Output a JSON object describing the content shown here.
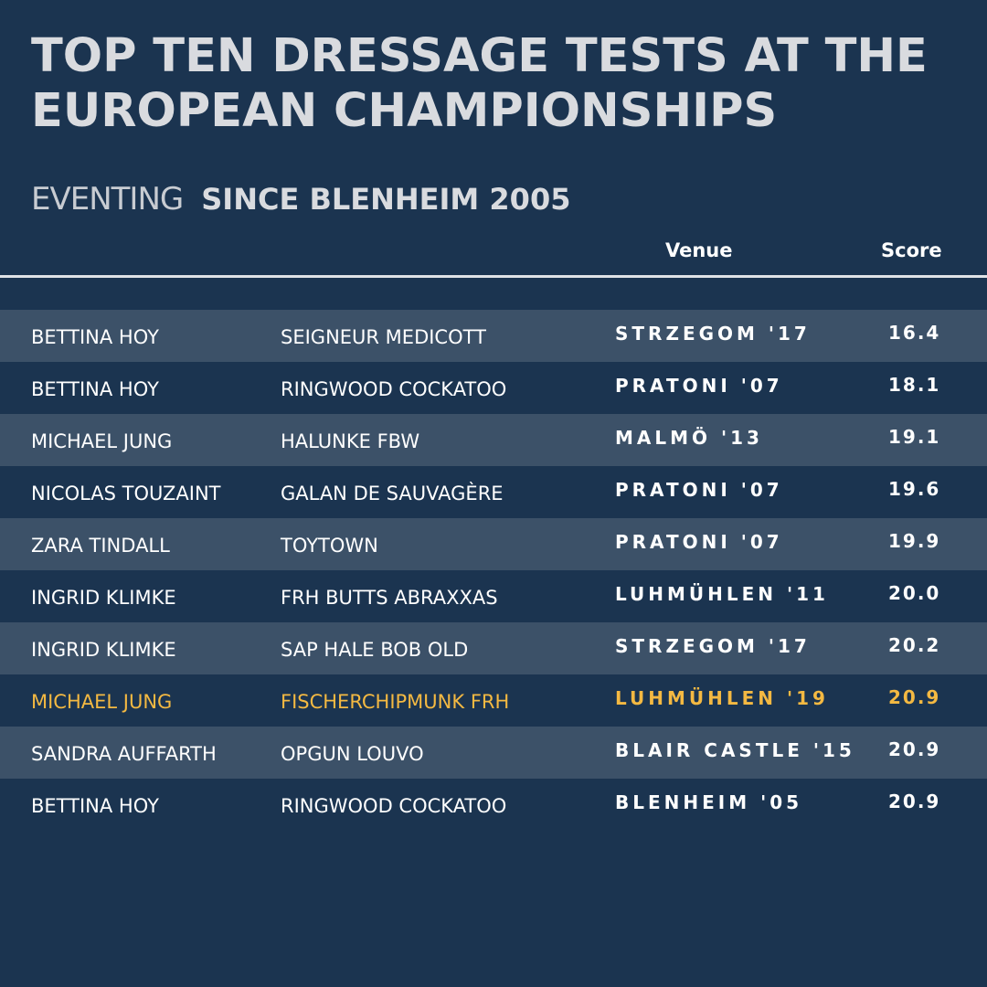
{
  "title_line1": "TOP TEN DRESSAGE TESTS AT THE",
  "title_line2": "EUROPEAN CHAMPIONSHIPS",
  "subtitle_light": "EVENTING",
  "subtitle_bold": "SINCE BLENHEIM 2005",
  "headers": {
    "venue": "Venue",
    "score": "Score"
  },
  "colors": {
    "background": "#1b3450",
    "row_shade": "#3c5168",
    "highlight": "#f4b942",
    "title": "#d9dbdf"
  },
  "chart_data": {
    "type": "table",
    "title": "TOP TEN DRESSAGE TESTS AT THE EUROPEAN CHAMPIONSHIPS",
    "subtitle": "EVENTING SINCE BLENHEIM 2005",
    "columns": [
      "",
      "",
      "Venue",
      "Score"
    ],
    "rows": [
      {
        "rider": "BETTINA HOY",
        "horse": "SEIGNEUR MEDICOTT",
        "venue": "STRZEGOM '17",
        "score": "16.4",
        "highlight": false
      },
      {
        "rider": "BETTINA HOY",
        "horse": "RINGWOOD COCKATOO",
        "venue": "PRATONI '07",
        "score": "18.1",
        "highlight": false
      },
      {
        "rider": "MICHAEL JUNG",
        "horse": "HALUNKE FBW",
        "venue": "MALMÖ '13",
        "score": "19.1",
        "highlight": false
      },
      {
        "rider": "NICOLAS TOUZAINT",
        "horse": "GALAN DE SAUVAGÈRE",
        "venue": "PRATONI '07",
        "score": "19.6",
        "highlight": false
      },
      {
        "rider": "ZARA TINDALL",
        "horse": "TOYTOWN",
        "venue": "PRATONI '07",
        "score": "19.9",
        "highlight": false
      },
      {
        "rider": "INGRID KLIMKE",
        "horse": "FRH BUTTS ABRAXXAS",
        "venue": "LUHMÜHLEN '11",
        "score": "20.0",
        "highlight": false
      },
      {
        "rider": "INGRID KLIMKE",
        "horse": "SAP HALE BOB OLD",
        "venue": "STRZEGOM '17",
        "score": "20.2",
        "highlight": false
      },
      {
        "rider": "MICHAEL JUNG",
        "horse": "FISCHERCHIPMUNK FRH",
        "venue": "LUHMÜHLEN '19",
        "score": "20.9",
        "highlight": true
      },
      {
        "rider": "SANDRA AUFFARTH",
        "horse": "OPGUN LOUVO",
        "venue": "BLAIR CASTLE '15",
        "score": "20.9",
        "highlight": false
      },
      {
        "rider": "BETTINA HOY",
        "horse": "RINGWOOD COCKATOO",
        "venue": "BLENHEIM '05",
        "score": "20.9",
        "highlight": false
      }
    ]
  }
}
